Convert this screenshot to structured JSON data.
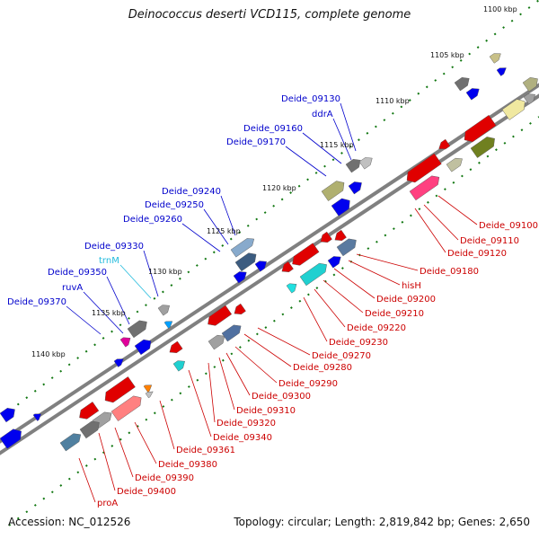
{
  "title": "Deinococcus deserti VCD115, complete genome",
  "accession_text": "Accession: NC_012526",
  "summary_text": "Topology: circular; Length: 2,819,842 bp; Genes: 2,650",
  "colors": {
    "backbone": "#808080",
    "gene_red": "#ee0000",
    "gene_blue": "#0000ee",
    "label_blue": "#0000cc",
    "label_red": "#cc0000",
    "label_trna": "#22bbdd",
    "tick_green": "#117711"
  },
  "tick_labels": [
    "1100 kbp",
    "1105 kbp",
    "1110 kbp",
    "1115 kbp",
    "1120 kbp",
    "1125 kbp",
    "1130 kbp",
    "1135 kbp",
    "1140 kbp"
  ],
  "labels_top": [
    "Deide_09130",
    "ddrA",
    "Deide_09160",
    "Deide_09170",
    "Deide_09240",
    "Deide_09250",
    "Deide_09260",
    "Deide_09330",
    "trnM",
    "Deide_09350",
    "ruvA",
    "Deide_09370"
  ],
  "labels_bottom": [
    "Deide_09100",
    "Deide_09110",
    "Deide_09120",
    "Deide_09180",
    "hisH",
    "Deide_09200",
    "Deide_09210",
    "Deide_09220",
    "Deide_09230",
    "Deide_09270",
    "Deide_09280",
    "Deide_09290",
    "Deide_09300",
    "Deide_09310",
    "Deide_09320",
    "Deide_09340",
    "Deide_09361",
    "Deide_09380",
    "Deide_09390",
    "Deide_09400",
    "proA"
  ]
}
